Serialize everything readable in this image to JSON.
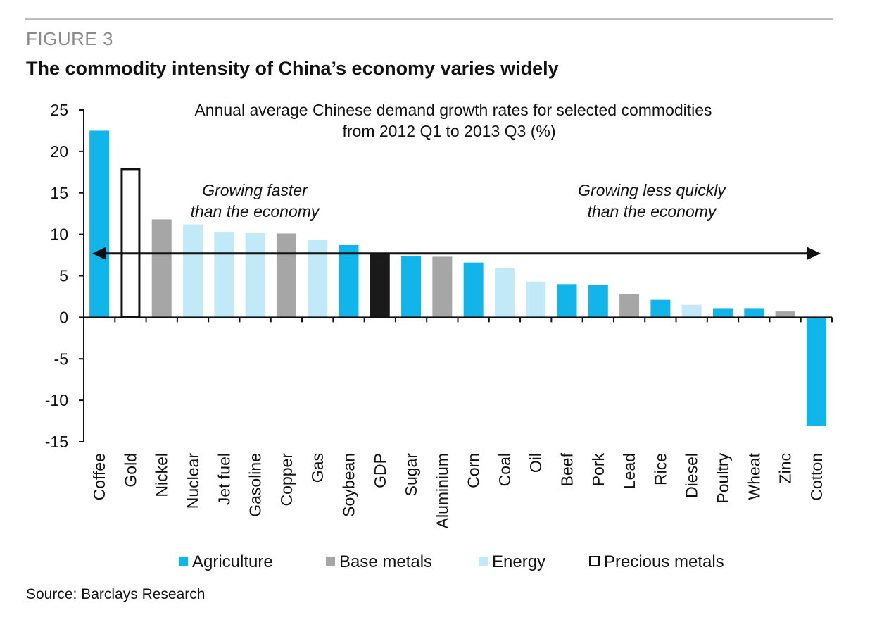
{
  "figure": {
    "label": "FIGURE 3",
    "title": "The commodity intensity of China’s economy varies widely",
    "source": "Source: Barclays Research"
  },
  "colors": {
    "Agriculture": "#12b5ea",
    "Base metals": "#a6a6a6",
    "Energy": "#c2e9f8",
    "Precious metals": "#ffffff",
    "GDP": "#1a1a1a",
    "axis": "#111111"
  },
  "legend": [
    {
      "label": "Agriculture",
      "group": "Agriculture"
    },
    {
      "label": "Base metals",
      "group": "Base metals"
    },
    {
      "label": "Energy",
      "group": "Energy"
    },
    {
      "label": "Precious metals",
      "group": "Precious metals"
    }
  ],
  "chart_data": {
    "type": "bar",
    "title": "Annual  average Chinese demand growth rates for selected commodities",
    "subtitle": "from 2012 Q1  to 2013 Q3 (%)",
    "xlabel": "",
    "ylabel": "",
    "ylim": [
      -15,
      25
    ],
    "yticks": [
      25,
      20,
      15,
      10,
      5,
      0,
      -5,
      -10,
      -15
    ],
    "categories": [
      "Coffee",
      "Gold",
      "Nickel",
      "Nuclear",
      "Jet fuel",
      "Gasoline",
      "Copper",
      "Gas",
      "Soybean",
      "GDP",
      "Sugar",
      "Aluminium",
      "Corn",
      "Coal",
      "Oil",
      "Beef",
      "Pork",
      "Lead",
      "Rice",
      "Diesel",
      "Poultry",
      "Wheat",
      "Zinc",
      "Cotton"
    ],
    "values": [
      22.5,
      18.0,
      11.8,
      11.2,
      10.3,
      10.2,
      10.1,
      9.3,
      8.7,
      7.7,
      7.4,
      7.3,
      6.6,
      5.9,
      4.3,
      4.0,
      3.9,
      2.8,
      2.1,
      1.5,
      1.1,
      1.1,
      0.7,
      -13.1
    ],
    "groups": [
      "Agriculture",
      "Precious metals",
      "Base metals",
      "Energy",
      "Energy",
      "Energy",
      "Base metals",
      "Energy",
      "Agriculture",
      "GDP",
      "Agriculture",
      "Base metals",
      "Agriculture",
      "Energy",
      "Energy",
      "Agriculture",
      "Agriculture",
      "Base metals",
      "Agriculture",
      "Energy",
      "Agriculture",
      "Agriculture",
      "Base metals",
      "Agriculture"
    ],
    "reference_line": {
      "value": 7.7,
      "style": "double-headed arrow"
    },
    "annotations": [
      {
        "text_lines": [
          "Growing faster",
          "than the economy"
        ]
      },
      {
        "text_lines": [
          "Growing less quickly",
          "than the economy"
        ]
      }
    ]
  }
}
